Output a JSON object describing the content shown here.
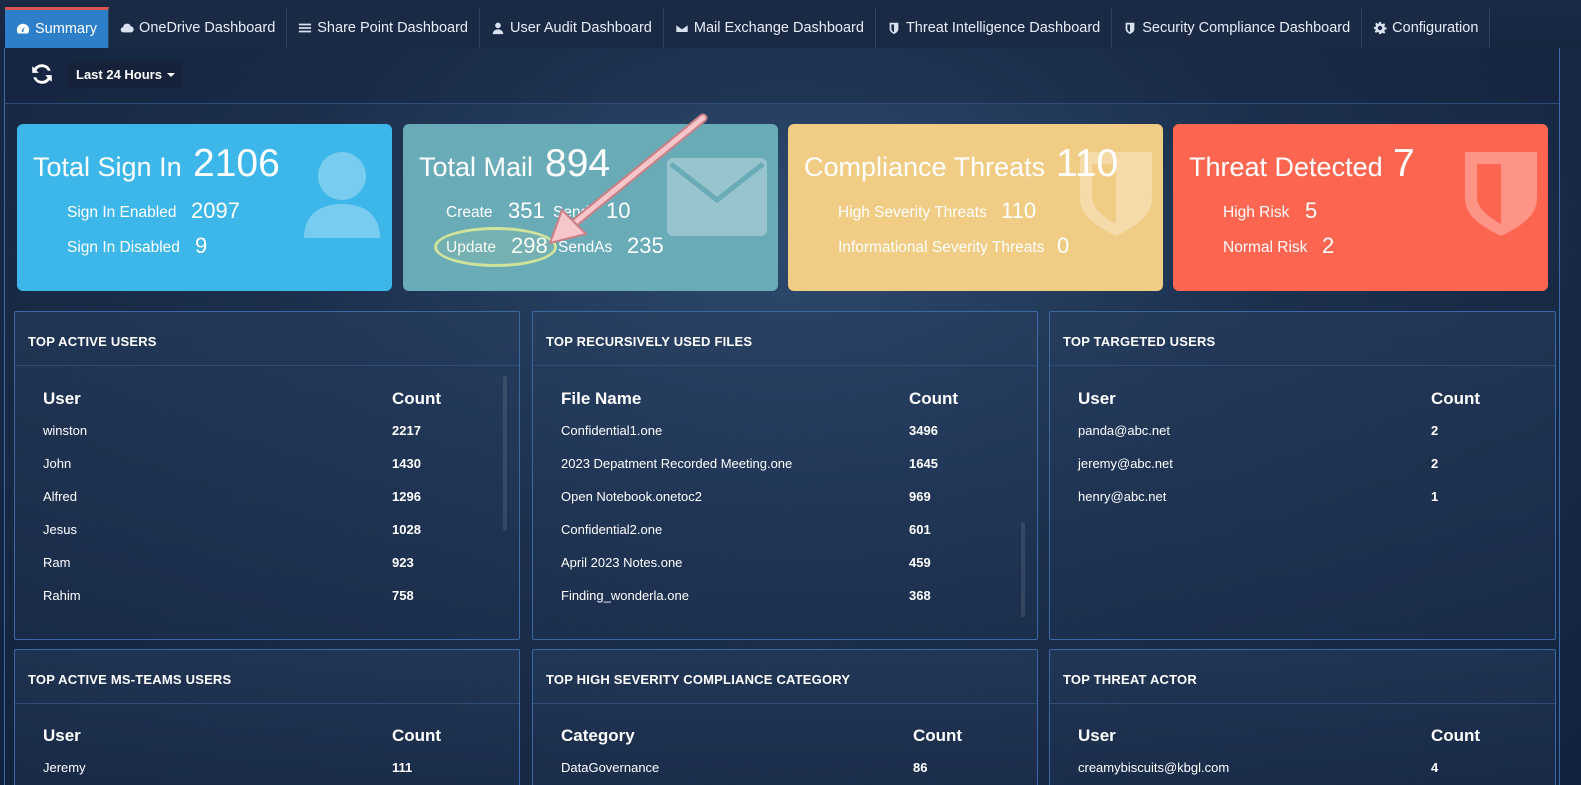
{
  "tabs": [
    {
      "label": "Summary",
      "icon": "dashboard-icon"
    },
    {
      "label": "OneDrive Dashboard",
      "icon": "cloud-icon"
    },
    {
      "label": "Share Point Dashboard",
      "icon": "list-icon"
    },
    {
      "label": "User Audit Dashboard",
      "icon": "user-icon"
    },
    {
      "label": "Mail Exchange Dashboard",
      "icon": "envelope-icon"
    },
    {
      "label": "Threat Intelligence Dashboard",
      "icon": "shield-icon"
    },
    {
      "label": "Security Compliance Dashboard",
      "icon": "shield-icon"
    },
    {
      "label": "Configuration",
      "icon": "gear-icon"
    }
  ],
  "toolbar": {
    "time_range": "Last 24 Hours"
  },
  "cards": {
    "signin": {
      "title": "Total Sign In",
      "total": "2106",
      "l1": "Sign In Enabled",
      "v1": "2097",
      "l2": "Sign In Disabled",
      "v2": "9",
      "color": "#3db7ea"
    },
    "mail": {
      "title": "Total Mail",
      "total": "894",
      "l1": "Create",
      "v1": "351",
      "l2": "Send",
      "v2": "10",
      "l3": "Update",
      "v3": "298",
      "l4": "SendAs",
      "v4": "235",
      "color": "#6aabb8"
    },
    "compliance": {
      "title": "Compliance Threats",
      "total": "110",
      "l1": "High Severity Threats",
      "v1": "110",
      "l2": "Informational Severity Threats",
      "v2": "0",
      "color": "#f0cc85"
    },
    "threat": {
      "title": "Threat Detected",
      "total": "7",
      "l1": "High Risk",
      "v1": "5",
      "l2": "Normal Risk",
      "v2": "2",
      "color": "#fc6651"
    }
  },
  "panels": {
    "active_users": {
      "title": "TOP ACTIVE USERS",
      "col1": "User",
      "col2": "Count",
      "rows": [
        [
          "winston",
          "2217"
        ],
        [
          "John",
          "1430"
        ],
        [
          "Alfred",
          "1296"
        ],
        [
          "Jesus",
          "1028"
        ],
        [
          "Ram",
          "923"
        ],
        [
          "Rahim",
          "758"
        ]
      ]
    },
    "files": {
      "title": "TOP RECURSIVELY USED FILES",
      "col1": "File Name",
      "col2": "Count",
      "rows": [
        [
          "Confidential1.one",
          "3496"
        ],
        [
          "2023 Depatment Recorded Meeting.one",
          "1645"
        ],
        [
          "Open Notebook.onetoc2",
          "969"
        ],
        [
          "Confidential2.one",
          "601"
        ],
        [
          "April 2023 Notes.one",
          "459"
        ],
        [
          "Finding_wonderla.one",
          "368"
        ]
      ]
    },
    "targeted": {
      "title": "TOP TARGETED USERS",
      "col1": "User",
      "col2": "Count",
      "rows": [
        [
          "panda@abc.net",
          "2"
        ],
        [
          "jeremy@abc.net",
          "2"
        ],
        [
          "henry@abc.net",
          "1"
        ]
      ]
    },
    "teams": {
      "title": "TOP ACTIVE MS-TEAMS USERS",
      "col1": "User",
      "col2": "Count",
      "rows": [
        [
          "Jeremy",
          "111"
        ]
      ]
    },
    "compliance_cat": {
      "title": "TOP HIGH SEVERITY COMPLIANCE CATEGORY",
      "col1": "Category",
      "col2": "Count",
      "rows": [
        [
          "DataGovernance",
          "86"
        ]
      ]
    },
    "actor": {
      "title": "TOP THREAT ACTOR",
      "col1": "User",
      "col2": "Count",
      "rows": [
        [
          "creamybiscuits@kbgl.com",
          "4"
        ]
      ]
    }
  }
}
